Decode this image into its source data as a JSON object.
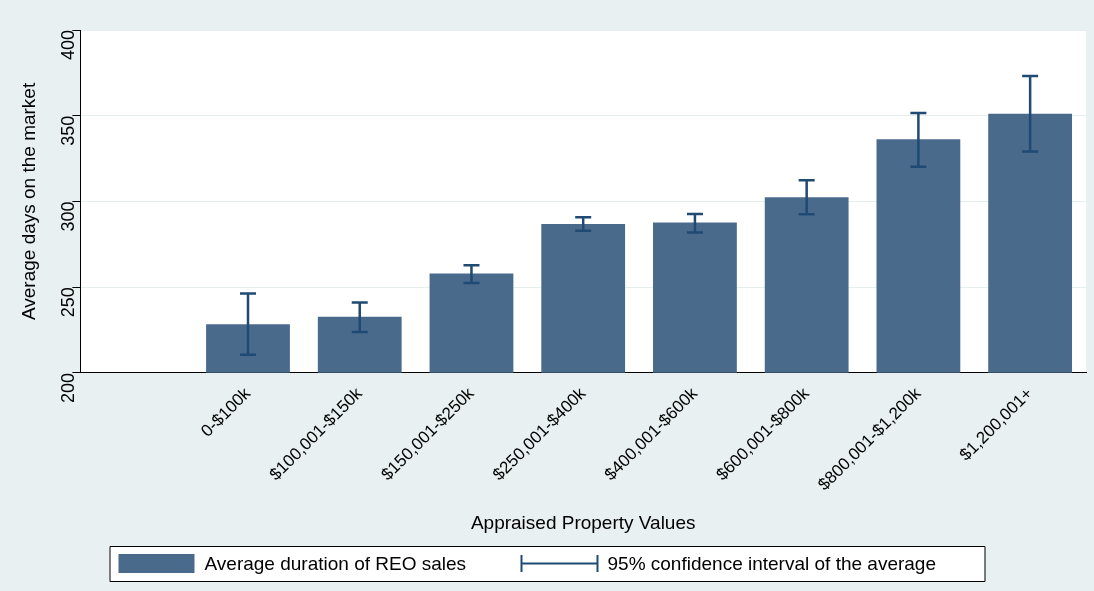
{
  "chart_data": {
    "type": "bar",
    "xlabel": "Appraised Property Values",
    "ylabel": "Average days on the market",
    "categories": [
      null,
      "0-$100k",
      "$100,001-$150k",
      "$150,001-$250k",
      "$250,001-$400k",
      "$400,001-$600k",
      "$600,001-$800k",
      "$800,001-$1,200k",
      "$1,200,001+"
    ],
    "series": [
      {
        "name": "Average duration of REO sales",
        "color": "#4a6a8c",
        "values": [
          null,
          228.4,
          232.7,
          258,
          286.9,
          287.7,
          302.5,
          336.3,
          351.1
        ],
        "errors": [
          null,
          [
            210.5,
            246.3
          ],
          [
            223.8,
            241
          ],
          [
            252.4,
            262.8
          ],
          [
            282.9,
            290.8
          ],
          [
            281.9,
            292.7
          ],
          [
            292.5,
            312.3
          ],
          [
            320.2,
            351.6
          ],
          [
            329.1,
            373.2
          ]
        ]
      }
    ],
    "annotations": [
      "95% confidence interval of the average"
    ],
    "ylim": [
      200,
      400
    ],
    "yticks": [
      200,
      250,
      300,
      350,
      400
    ],
    "grid": "y",
    "legend": "bottom"
  }
}
